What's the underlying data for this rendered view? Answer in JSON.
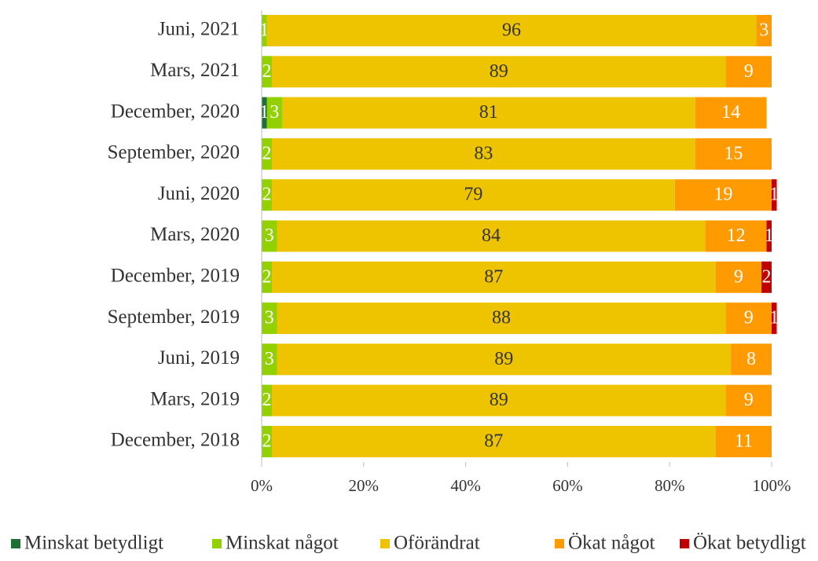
{
  "chart_data": {
    "type": "stacked_barh",
    "categories": [
      "Juni, 2021",
      "Mars, 2021",
      "December, 2020",
      "September, 2020",
      "Juni, 2020",
      "Mars, 2020",
      "December, 2019",
      "September, 2019",
      "Juni, 2019",
      "Mars, 2019",
      "December, 2018"
    ],
    "series": [
      {
        "name": "Minskat betydligt",
        "color": "#1f6e35",
        "values": [
          null,
          null,
          1,
          null,
          null,
          null,
          null,
          null,
          null,
          null,
          null
        ]
      },
      {
        "name": "Minskat något",
        "color": "#92d000",
        "values": [
          1,
          2,
          3,
          2,
          2,
          3,
          2,
          3,
          3,
          2,
          2
        ]
      },
      {
        "name": "Oförändrat",
        "color": "#eec400",
        "values": [
          96,
          89,
          81,
          83,
          79,
          84,
          87,
          88,
          89,
          89,
          87
        ]
      },
      {
        "name": "Ökat något",
        "color": "#ff9a00",
        "values": [
          3,
          9,
          14,
          15,
          19,
          12,
          9,
          9,
          8,
          9,
          11
        ]
      },
      {
        "name": "Ökat betydligt",
        "color": "#c00000",
        "values": [
          null,
          null,
          null,
          null,
          1,
          1,
          2,
          1,
          null,
          null,
          null
        ]
      }
    ],
    "xlim": [
      0,
      100
    ],
    "xticks": [
      {
        "value": 0,
        "label": "0%"
      },
      {
        "value": 20,
        "label": "20%"
      },
      {
        "value": 40,
        "label": "40%"
      },
      {
        "value": 60,
        "label": "60%"
      },
      {
        "value": 80,
        "label": "80%"
      },
      {
        "value": 100,
        "label": "100%"
      }
    ],
    "legend": "bottom"
  }
}
